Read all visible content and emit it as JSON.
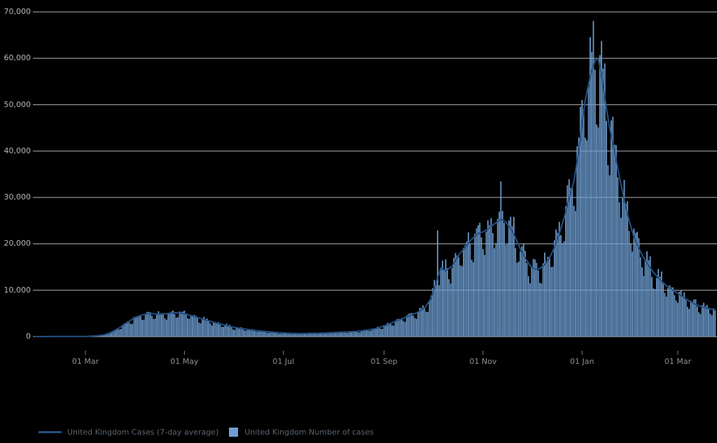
{
  "chart_data": {
    "type": "bar+line",
    "title": "",
    "xlabel": "",
    "ylabel": "",
    "x_axis": {
      "ticks": [
        {
          "label": "01 Mar",
          "day": 31
        },
        {
          "label": "01 May",
          "day": 92
        },
        {
          "label": "01 Jul",
          "day": 153
        },
        {
          "label": "01 Sep",
          "day": 215
        },
        {
          "label": "01 Nov",
          "day": 276
        },
        {
          "label": "01 Jan",
          "day": 337
        },
        {
          "label": "01 Mar",
          "day": 396
        }
      ],
      "total_days": 420
    },
    "y_axis": {
      "ylim": [
        0,
        70000
      ],
      "ticks": [
        {
          "label": "0",
          "value": 0
        },
        {
          "label": "10,000",
          "value": 10000
        },
        {
          "label": "20,000",
          "value": 20000
        },
        {
          "label": "30,000",
          "value": 30000
        },
        {
          "label": "40,000",
          "value": 40000
        },
        {
          "label": "50,000",
          "value": 50000
        },
        {
          "label": "60,000",
          "value": 60000
        },
        {
          "label": "70,000",
          "value": 70000
        }
      ]
    },
    "grid": "horizontal",
    "legend_position": "bottom-left",
    "series": [
      {
        "name": "United Kingdom Cases (7-day average)",
        "type": "line",
        "anchors": [
          [
            0,
            20
          ],
          [
            20,
            25
          ],
          [
            31,
            50
          ],
          [
            38,
            160
          ],
          [
            43,
            420
          ],
          [
            47,
            950
          ],
          [
            52,
            1900
          ],
          [
            57,
            3100
          ],
          [
            61,
            4000
          ],
          [
            66,
            4700
          ],
          [
            71,
            5000
          ],
          [
            76,
            4850
          ],
          [
            81,
            4950
          ],
          [
            86,
            5150
          ],
          [
            90,
            5050
          ],
          [
            93,
            4850
          ],
          [
            97,
            4450
          ],
          [
            101,
            4000
          ],
          [
            106,
            3500
          ],
          [
            111,
            3000
          ],
          [
            116,
            2550
          ],
          [
            122,
            2050
          ],
          [
            128,
            1700
          ],
          [
            134,
            1400
          ],
          [
            140,
            1150
          ],
          [
            146,
            950
          ],
          [
            153,
            800
          ],
          [
            158,
            700
          ],
          [
            163,
            660
          ],
          [
            168,
            690
          ],
          [
            174,
            730
          ],
          [
            180,
            800
          ],
          [
            186,
            900
          ],
          [
            192,
            1000
          ],
          [
            198,
            1120
          ],
          [
            204,
            1350
          ],
          [
            210,
            1750
          ],
          [
            215,
            2300
          ],
          [
            220,
            3000
          ],
          [
            225,
            3700
          ],
          [
            230,
            4400
          ],
          [
            235,
            5100
          ],
          [
            240,
            6200
          ],
          [
            244,
            8200
          ],
          [
            247,
            11600
          ],
          [
            250,
            14800
          ],
          [
            253,
            14200
          ],
          [
            257,
            15200
          ],
          [
            261,
            17600
          ],
          [
            265,
            19200
          ],
          [
            269,
            21000
          ],
          [
            273,
            22200
          ],
          [
            276,
            22600
          ],
          [
            279,
            23200
          ],
          [
            283,
            24300
          ],
          [
            287,
            25300
          ],
          [
            290,
            24700
          ],
          [
            293,
            23300
          ],
          [
            296,
            21300
          ],
          [
            299,
            18900
          ],
          [
            302,
            16900
          ],
          [
            305,
            15300
          ],
          [
            308,
            14500
          ],
          [
            311,
            14700
          ],
          [
            314,
            15500
          ],
          [
            317,
            17000
          ],
          [
            320,
            19200
          ],
          [
            323,
            22200
          ],
          [
            326,
            25600
          ],
          [
            329,
            29800
          ],
          [
            332,
            33500
          ],
          [
            335,
            40000
          ],
          [
            337,
            46000
          ],
          [
            339,
            51000
          ],
          [
            342,
            56000
          ],
          [
            345,
            59500
          ],
          [
            347,
            60000
          ],
          [
            349,
            56500
          ],
          [
            351,
            51500
          ],
          [
            354,
            45000
          ],
          [
            357,
            40000
          ],
          [
            360,
            34500
          ],
          [
            363,
            29500
          ],
          [
            366,
            25000
          ],
          [
            369,
            21500
          ],
          [
            372,
            19000
          ],
          [
            375,
            17000
          ],
          [
            378,
            15300
          ],
          [
            381,
            13900
          ],
          [
            384,
            12700
          ],
          [
            387,
            11600
          ],
          [
            390,
            10700
          ],
          [
            393,
            10000
          ],
          [
            396,
            9300
          ],
          [
            399,
            8600
          ],
          [
            402,
            7900
          ],
          [
            405,
            7300
          ],
          [
            408,
            6800
          ],
          [
            411,
            6400
          ],
          [
            414,
            6100
          ],
          [
            417,
            5900
          ],
          [
            419,
            5800
          ]
        ]
      },
      {
        "name": "United Kingdom Number of cases",
        "type": "bar",
        "derivation": "line_anchors_times_weekday_factor_plus_noise",
        "start_weekday": 4,
        "weekday_factors": [
          0.8,
          0.78,
          1.02,
          1.1,
          1.08,
          1.1,
          0.96
        ],
        "noise_amplitude": 0.14,
        "notable_bars": {
          "248": 22900,
          "287": 33470,
          "330": 32000,
          "344": 68053,
          "419": 5600
        }
      }
    ]
  },
  "legend": {
    "avg_label": "United Kingdom Cases (7-day average)",
    "cases_label": "United Kingdom Number of cases"
  },
  "colors": {
    "background": "#000000",
    "grid": "#b3b3b3",
    "axis_tick": "#7d7d7d",
    "y_label": "#b5b5b5",
    "x_label": "#8f8f8f",
    "bar_fill": "#6f9fd4",
    "line_stroke": "#245084",
    "legend_text": "#59646f"
  }
}
